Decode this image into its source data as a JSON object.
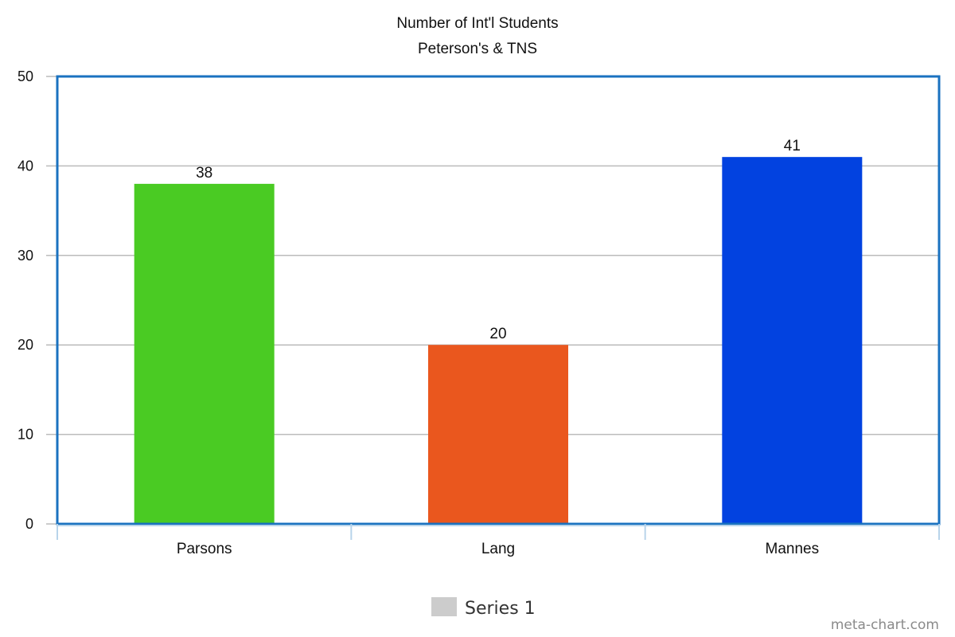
{
  "chart_data": {
    "type": "bar",
    "title": "Number of Int'l Students",
    "subtitle": "Peterson's & TNS",
    "categories": [
      "Parsons",
      "Lang",
      "Mannes"
    ],
    "series": [
      {
        "name": "Series 1",
        "values": [
          38,
          20,
          41
        ]
      }
    ],
    "data_labels": [
      "38",
      "20",
      "41"
    ],
    "bar_colors": [
      "#4ACB23",
      "#EA571E",
      "#0242E0"
    ],
    "ylim": [
      0,
      50
    ],
    "yticks": [
      0,
      10,
      20,
      30,
      40,
      50
    ],
    "xlabel": "",
    "ylabel": "",
    "grid": true,
    "legend": {
      "position": "bottom-center",
      "label": "Series 1",
      "swatch_color": "#CCCCCC"
    }
  },
  "colors": {
    "plot_border": "#1A72C0",
    "grid": "#BBBBBB",
    "axis_ticks": "#B8D4EA"
  },
  "credit": "meta-chart.com"
}
